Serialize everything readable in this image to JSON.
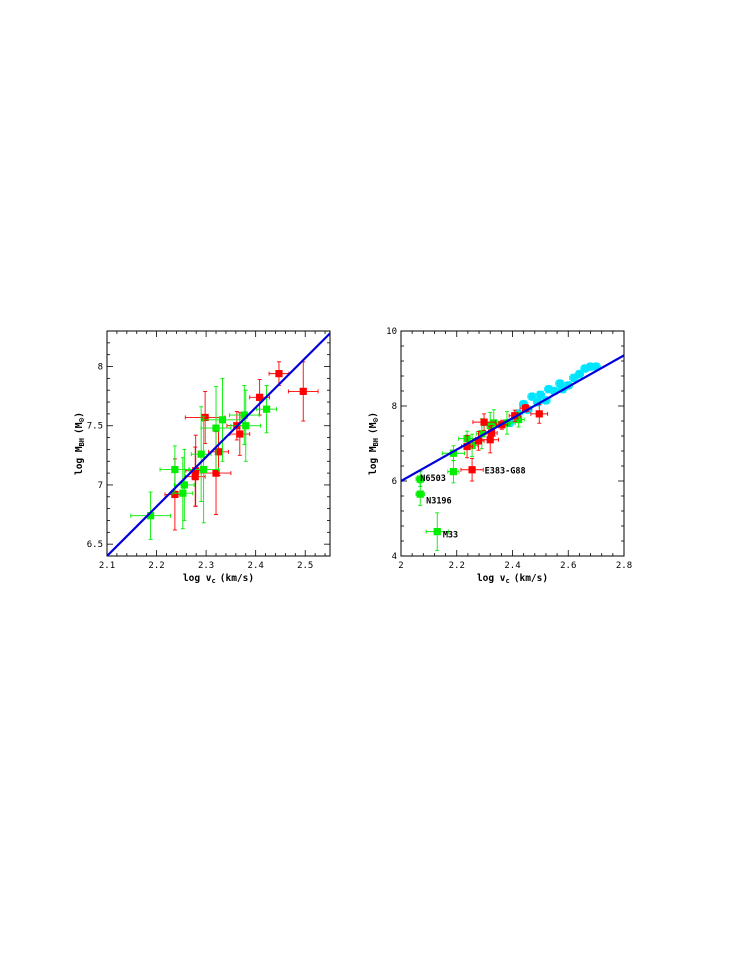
{
  "colors": {
    "red": "#ff0000",
    "green": "#00ee00",
    "cyan": "#00e5ff",
    "fit": "#0000dd"
  },
  "chart_data": [
    {
      "type": "scatter",
      "id": "left",
      "xlabel_main": "log v",
      "xlabel_sub": "c",
      "xlabel_unit": "(km/s)",
      "ylabel_main": "log M",
      "ylabel_sub": "BH",
      "ylabel_unit": "(M",
      "ylabel_sym": "⊙",
      "ylabel_close": ")",
      "xlim": [
        2.1,
        2.55
      ],
      "ylim": [
        6.4,
        8.3
      ],
      "xticks": [
        "2.1",
        "2.2",
        "2.3",
        "2.4",
        "2.5"
      ],
      "yticks": [
        "6.5",
        "7",
        "7.5",
        "8"
      ],
      "fit_line": {
        "x": [
          2.1,
          2.55
        ],
        "y": [
          6.4,
          8.28
        ]
      },
      "series": [
        {
          "color": "red",
          "points": [
            {
              "x": 2.237,
              "y": 6.92,
              "xerr": 0.02,
              "yerr": 0.3
            },
            {
              "x": 2.278,
              "y": 7.07,
              "xerr": 0.02,
              "yerr": 0.25
            },
            {
              "x": 2.279,
              "y": 7.12,
              "xerr": 0.02,
              "yerr": 0.3
            },
            {
              "x": 2.298,
              "y": 7.57,
              "xerr": 0.04,
              "yerr": 0.22
            },
            {
              "x": 2.32,
              "y": 7.1,
              "xerr": 0.03,
              "yerr": 0.35
            },
            {
              "x": 2.325,
              "y": 7.28,
              "xerr": 0.02,
              "yerr": 0.2
            },
            {
              "x": 2.362,
              "y": 7.5,
              "xerr": 0.02,
              "yerr": 0.12
            },
            {
              "x": 2.368,
              "y": 7.43,
              "xerr": 0.02,
              "yerr": 0.18
            },
            {
              "x": 2.408,
              "y": 7.74,
              "xerr": 0.02,
              "yerr": 0.15
            },
            {
              "x": 2.447,
              "y": 7.94,
              "xerr": 0.02,
              "yerr": 0.1
            },
            {
              "x": 2.496,
              "y": 7.79,
              "xerr": 0.03,
              "yerr": 0.25
            }
          ]
        },
        {
          "color": "green",
          "points": [
            {
              "x": 2.188,
              "y": 6.74,
              "xerr": 0.04,
              "yerr": 0.2
            },
            {
              "x": 2.237,
              "y": 7.13,
              "xerr": 0.03,
              "yerr": 0.2
            },
            {
              "x": 2.253,
              "y": 6.93,
              "xerr": 0.02,
              "yerr": 0.3
            },
            {
              "x": 2.256,
              "y": 7.0,
              "xerr": 0.02,
              "yerr": 0.3
            },
            {
              "x": 2.29,
              "y": 7.26,
              "xerr": 0.02,
              "yerr": 0.4
            },
            {
              "x": 2.295,
              "y": 7.13,
              "xerr": 0.03,
              "yerr": 0.45
            },
            {
              "x": 2.32,
              "y": 7.48,
              "xerr": 0.03,
              "yerr": 0.35
            },
            {
              "x": 2.333,
              "y": 7.55,
              "xerr": 0.04,
              "yerr": 0.35
            },
            {
              "x": 2.377,
              "y": 7.59,
              "xerr": 0.03,
              "yerr": 0.25
            },
            {
              "x": 2.38,
              "y": 7.5,
              "xerr": 0.03,
              "yerr": 0.3
            },
            {
              "x": 2.422,
              "y": 7.64,
              "xerr": 0.02,
              "yerr": 0.2
            }
          ]
        }
      ]
    },
    {
      "type": "scatter",
      "id": "right",
      "xlabel_main": "log v",
      "xlabel_sub": "c",
      "xlabel_unit": "(km/s)",
      "ylabel_main": "log M",
      "ylabel_sub": "BH",
      "ylabel_unit": "(M",
      "ylabel_sym": "⊙",
      "ylabel_close": ")",
      "xlim": [
        2.0,
        2.8
      ],
      "ylim": [
        4.0,
        10.0
      ],
      "xticks": [
        "2",
        "2.2",
        "2.4",
        "2.6",
        "2.8"
      ],
      "yticks": [
        "4",
        "6",
        "8",
        "10"
      ],
      "fit_line": {
        "x": [
          2.0,
          2.8
        ],
        "y": [
          6.0,
          9.35
        ]
      },
      "annotations": [
        {
          "text": "N6503",
          "x": 2.069,
          "y": 6.0
        },
        {
          "text": "N3196",
          "x": 2.09,
          "y": 5.4
        },
        {
          "text": "E383-G88",
          "x": 2.3,
          "y": 6.2
        },
        {
          "text": "M33",
          "x": 2.15,
          "y": 4.5
        }
      ],
      "series": [
        {
          "color": "cyan",
          "points": [
            {
              "x": 2.39,
              "y": 7.55,
              "xerr": 0.015,
              "yerr": 0.1
            },
            {
              "x": 2.42,
              "y": 7.8,
              "xerr": 0.015,
              "yerr": 0.1
            },
            {
              "x": 2.44,
              "y": 8.05,
              "xerr": 0.015,
              "yerr": 0.1
            },
            {
              "x": 2.455,
              "y": 7.9,
              "xerr": 0.015,
              "yerr": 0.1
            },
            {
              "x": 2.47,
              "y": 8.25,
              "xerr": 0.015,
              "yerr": 0.1
            },
            {
              "x": 2.49,
              "y": 8.1,
              "xerr": 0.015,
              "yerr": 0.1
            },
            {
              "x": 2.5,
              "y": 8.3,
              "xerr": 0.015,
              "yerr": 0.1
            },
            {
              "x": 2.52,
              "y": 8.15,
              "xerr": 0.015,
              "yerr": 0.1
            },
            {
              "x": 2.53,
              "y": 8.45,
              "xerr": 0.015,
              "yerr": 0.1
            },
            {
              "x": 2.55,
              "y": 8.4,
              "xerr": 0.015,
              "yerr": 0.1
            },
            {
              "x": 2.57,
              "y": 8.6,
              "xerr": 0.015,
              "yerr": 0.1
            },
            {
              "x": 2.58,
              "y": 8.45,
              "xerr": 0.015,
              "yerr": 0.1
            },
            {
              "x": 2.6,
              "y": 8.55,
              "xerr": 0.015,
              "yerr": 0.1
            },
            {
              "x": 2.62,
              "y": 8.75,
              "xerr": 0.015,
              "yerr": 0.1
            },
            {
              "x": 2.64,
              "y": 8.85,
              "xerr": 0.015,
              "yerr": 0.1
            },
            {
              "x": 2.66,
              "y": 9.0,
              "xerr": 0.015,
              "yerr": 0.1
            },
            {
              "x": 2.68,
              "y": 9.05,
              "xerr": 0.015,
              "yerr": 0.1
            },
            {
              "x": 2.7,
              "y": 9.05,
              "xerr": 0.015,
              "yerr": 0.1
            }
          ]
        },
        {
          "color": "green",
          "points": [
            {
              "x": 2.069,
              "y": 6.05,
              "xerr": 0.015,
              "yerr": 0.2
            },
            {
              "x": 2.069,
              "y": 5.65,
              "xerr": 0.015,
              "yerr": 0.3
            },
            {
              "x": 2.13,
              "y": 4.65,
              "xerr": 0.04,
              "yerr": 0.5
            },
            {
              "x": 2.188,
              "y": 6.25,
              "xerr": 0.02,
              "yerr": 0.3
            },
            {
              "x": 2.188,
              "y": 6.74,
              "xerr": 0.04,
              "yerr": 0.2
            },
            {
              "x": 2.237,
              "y": 7.13,
              "xerr": 0.03,
              "yerr": 0.2
            },
            {
              "x": 2.255,
              "y": 6.95,
              "xerr": 0.02,
              "yerr": 0.3
            },
            {
              "x": 2.29,
              "y": 7.26,
              "xerr": 0.02,
              "yerr": 0.4
            },
            {
              "x": 2.32,
              "y": 7.48,
              "xerr": 0.03,
              "yerr": 0.35
            },
            {
              "x": 2.333,
              "y": 7.55,
              "xerr": 0.04,
              "yerr": 0.35
            },
            {
              "x": 2.38,
              "y": 7.55,
              "xerr": 0.03,
              "yerr": 0.3
            },
            {
              "x": 2.422,
              "y": 7.64,
              "xerr": 0.02,
              "yerr": 0.2
            }
          ]
        },
        {
          "color": "red",
          "points": [
            {
              "x": 2.237,
              "y": 6.92,
              "xerr": 0.02,
              "yerr": 0.3
            },
            {
              "x": 2.255,
              "y": 6.3,
              "xerr": 0.04,
              "yerr": 0.3
            },
            {
              "x": 2.278,
              "y": 7.07,
              "xerr": 0.02,
              "yerr": 0.25
            },
            {
              "x": 2.298,
              "y": 7.57,
              "xerr": 0.04,
              "yerr": 0.22
            },
            {
              "x": 2.32,
              "y": 7.1,
              "xerr": 0.03,
              "yerr": 0.35
            },
            {
              "x": 2.325,
              "y": 7.28,
              "xerr": 0.02,
              "yerr": 0.2
            },
            {
              "x": 2.362,
              "y": 7.5,
              "xerr": 0.02,
              "yerr": 0.12
            },
            {
              "x": 2.408,
              "y": 7.74,
              "xerr": 0.02,
              "yerr": 0.15
            },
            {
              "x": 2.447,
              "y": 7.94,
              "xerr": 0.02,
              "yerr": 0.1
            },
            {
              "x": 2.496,
              "y": 7.79,
              "xerr": 0.03,
              "yerr": 0.25
            }
          ]
        }
      ]
    }
  ]
}
